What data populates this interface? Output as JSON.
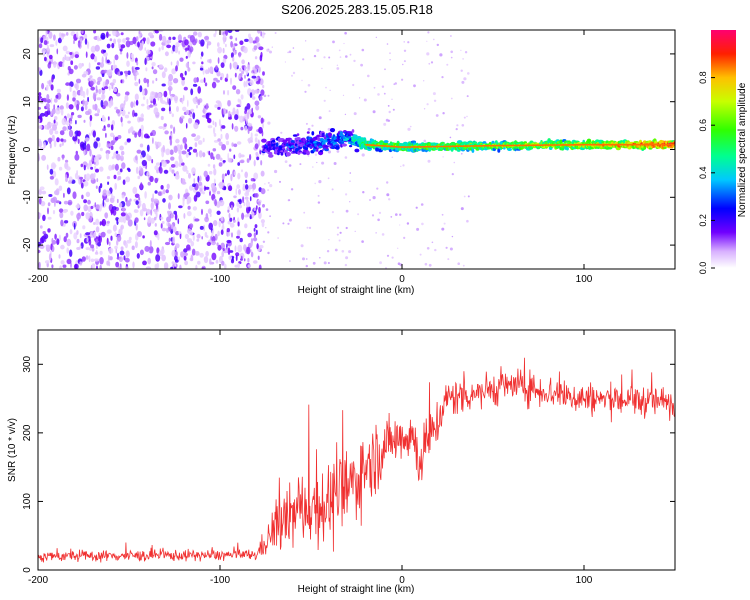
{
  "title": "S206.2025.283.15.05.R18",
  "chart_data": [
    {
      "type": "heatmap",
      "name": "spectrogram",
      "xlabel": "Height of straight line (km)",
      "ylabel": "Frequency (Hz)",
      "xlim": [
        -200,
        150
      ],
      "ylim": [
        -25,
        25
      ],
      "xticks": [
        -200,
        -100,
        0,
        100
      ],
      "xtick_labels": [
        "-200",
        "-100",
        "0",
        "100"
      ],
      "yticks": [
        -20,
        -10,
        0,
        10,
        20
      ],
      "ytick_labels": [
        "-20",
        "-10",
        "0",
        "10",
        "20"
      ],
      "noise_region_x": [
        -200,
        -76
      ],
      "meteor_track": [
        {
          "x": -76,
          "f": 0.5,
          "amp": 0.18,
          "spread": 3.0
        },
        {
          "x": -60,
          "f": 0.8,
          "amp": 0.22,
          "spread": 3.5
        },
        {
          "x": -45,
          "f": 1.5,
          "amp": 0.25,
          "spread": 3.5
        },
        {
          "x": -30,
          "f": 2.5,
          "amp": 0.32,
          "spread": 3.0
        },
        {
          "x": -20,
          "f": 1.0,
          "amp": 0.55,
          "spread": 1.5
        },
        {
          "x": 0,
          "f": 0.5,
          "amp": 0.6,
          "spread": 1.4
        },
        {
          "x": 50,
          "f": 0.8,
          "amp": 0.62,
          "spread": 1.3
        },
        {
          "x": 100,
          "f": 1.0,
          "amp": 0.72,
          "spread": 1.2
        },
        {
          "x": 150,
          "f": 1.0,
          "amp": 0.95,
          "spread": 1.2
        }
      ],
      "colorbar": {
        "label": "Normalized spectral amplitude",
        "ticks": [
          0.0,
          0.2,
          0.4,
          0.6,
          0.8
        ],
        "tick_labels": [
          "0.0",
          "0.2",
          "0.4",
          "0.6",
          "0.8"
        ],
        "range": [
          0,
          1
        ]
      }
    },
    {
      "type": "line",
      "name": "snr",
      "xlabel": "Height of straight line (km)",
      "ylabel": "SNR (10 * v/v)",
      "xlim": [
        -200,
        150
      ],
      "ylim": [
        0,
        350
      ],
      "xticks": [
        -200,
        -100,
        0,
        100
      ],
      "xtick_labels": [
        "-200",
        "-100",
        "0",
        "100"
      ],
      "yticks": [
        0,
        100,
        200,
        300
      ],
      "ytick_labels": [
        "0",
        "100",
        "200",
        "300"
      ],
      "color": "#f03030",
      "trend": [
        {
          "x": -200,
          "mean": 20,
          "noise": 10
        },
        {
          "x": -80,
          "mean": 22,
          "noise": 10
        },
        {
          "x": -70,
          "mean": 60,
          "noise": 45
        },
        {
          "x": -55,
          "mean": 90,
          "noise": 65
        },
        {
          "x": -35,
          "mean": 100,
          "noise": 80
        },
        {
          "x": -20,
          "mean": 150,
          "noise": 70
        },
        {
          "x": -5,
          "mean": 190,
          "noise": 45
        },
        {
          "x": 5,
          "mean": 200,
          "noise": 50
        },
        {
          "x": 10,
          "mean": 160,
          "noise": 55
        },
        {
          "x": 25,
          "mean": 250,
          "noise": 35
        },
        {
          "x": 60,
          "mean": 270,
          "noise": 30
        },
        {
          "x": 100,
          "mean": 250,
          "noise": 30
        },
        {
          "x": 150,
          "mean": 245,
          "noise": 28
        }
      ]
    }
  ],
  "colors": {
    "snr_line": "#f03030",
    "axis": "#000000"
  }
}
